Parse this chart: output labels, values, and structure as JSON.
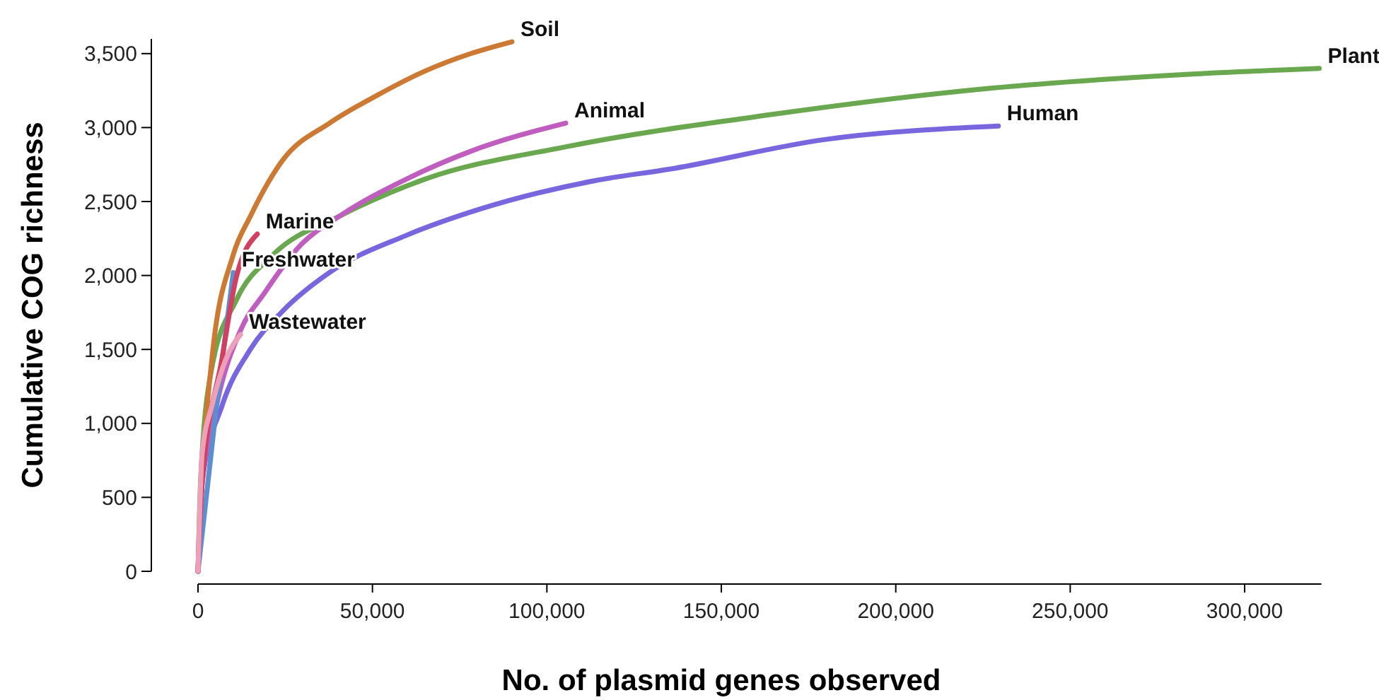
{
  "chart_data": {
    "type": "line",
    "xlabel": "No. of plasmid genes observed",
    "ylabel": "Cumulative COG richness",
    "xlim": [
      0,
      322000
    ],
    "ylim": [
      0,
      3600
    ],
    "xticks": [
      0,
      {
        "value": 50000,
        "label": "50,000"
      },
      {
        "value": 100000,
        "label": "100,000"
      },
      {
        "value": 150000,
        "label": "150,000"
      },
      {
        "value": 200000,
        "label": "200,000"
      },
      {
        "value": 250000,
        "label": "250,000"
      },
      {
        "value": 300000,
        "label": "300,000"
      }
    ],
    "yticks": [
      0,
      500,
      {
        "value": 1000,
        "label": "1,000"
      },
      {
        "value": 1500,
        "label": "1,500"
      },
      {
        "value": 2000,
        "label": "2,000"
      },
      {
        "value": 2500,
        "label": "2,500"
      },
      {
        "value": 3000,
        "label": "3,000"
      },
      {
        "value": 3500,
        "label": "3,500"
      }
    ],
    "grid": false,
    "marker": "none",
    "line_style": "solid",
    "series": [
      {
        "name": "Human",
        "color": "#7766dd",
        "x": [
          0,
          1200,
          6900,
          15000,
          24300,
          37700,
          59600,
          81000,
          113500,
          135400,
          180000,
          229400
        ],
        "values": [
          0,
          610,
          1120,
          1500,
          1760,
          2020,
          2270,
          2450,
          2640,
          2720,
          2920,
          3010
        ]
      },
      {
        "name": "Plant",
        "color": "#6aa84f",
        "x": [
          0,
          800,
          4000,
          10900,
          21500,
          40500,
          64900,
          105400,
          165000,
          224600,
          284100,
          321400
        ],
        "values": [
          0,
          640,
          1380,
          1830,
          2140,
          2400,
          2650,
          2870,
          3090,
          3260,
          3360,
          3400
        ]
      },
      {
        "name": "Animal",
        "color": "#c05ec0",
        "x": [
          0,
          800,
          5300,
          12200,
          19000,
          29600,
          40500,
          59600,
          78200,
          105400
        ],
        "values": [
          0,
          490,
          1120,
          1630,
          1880,
          2210,
          2400,
          2650,
          2840,
          3030
        ]
      },
      {
        "name": "Soil",
        "color": "#cc7a33",
        "x": [
          0,
          1200,
          4000,
          10100,
          15000,
          24300,
          37700,
          51500,
          64900,
          78200,
          90000
        ],
        "values": [
          0,
          640,
          1440,
          2140,
          2400,
          2780,
          3030,
          3220,
          3380,
          3500,
          3580
        ]
      },
      {
        "name": "Freshwater",
        "color": "#5b8fd0",
        "x": [
          0,
          1200,
          5300,
          10100
        ],
        "values": [
          0,
          null,
          1120,
          2020
        ]
      },
      {
        "name": "Marine",
        "color": "#d04060",
        "x": [
          0,
          1200,
          6900,
          10900,
          17000
        ],
        "values": [
          0,
          600,
          1440,
          1980,
          2280
        ]
      },
      {
        "name": "Wastewater",
        "color": "#eea0b8",
        "x": [
          0,
          1200,
          4000,
          8100,
          12200
        ],
        "values": [
          0,
          800,
          1120,
          1440,
          1600
        ]
      }
    ]
  }
}
